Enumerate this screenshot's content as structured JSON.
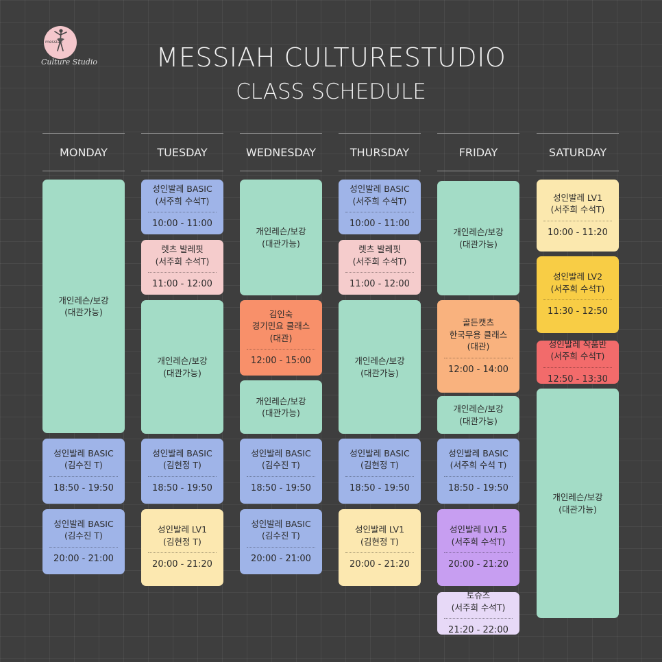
{
  "logo": {
    "mini": "messiah",
    "studio": "Culture Studio"
  },
  "header": {
    "title": "MESSIAH CULTURESTUDIO",
    "subtitle": "CLASS SCHEDULE"
  },
  "colors": {
    "background": "#3e3e3e",
    "green": "#a3dcc6",
    "blue": "#9fb4e8",
    "pink": "#f5cccc",
    "yellow": "#fce8b0",
    "orange": "#f8906a",
    "peach": "#f9b27e",
    "purple": "#c79ef1",
    "lavender": "#e7d9f7",
    "gold": "#f8cd45",
    "red": "#f26b6b"
  },
  "days": [
    {
      "label": "MONDAY",
      "classes": [
        {
          "name": "개인레슨/보강\n(대관가능)",
          "time": "",
          "color": "green"
        },
        {
          "name": "성인발레 BASIC\n(김수진 T)",
          "time": "18:50 - 19:50",
          "color": "blue"
        },
        {
          "name": "성인발레 BASIC\n(김수진 T)",
          "time": "20:00 - 21:00",
          "color": "blue"
        }
      ]
    },
    {
      "label": "TUESDAY",
      "classes": [
        {
          "name": "성인발레 BASIC\n(서주희 수석T)",
          "time": "10:00 - 11:00",
          "color": "blue"
        },
        {
          "name": "렛츠 발레핏\n(서주희 수석T)",
          "time": "11:00 - 12:00",
          "color": "pink"
        },
        {
          "name": "개인레슨/보강\n(대관가능)",
          "time": "",
          "color": "green"
        },
        {
          "name": "성인발레 BASIC\n(김현정 T)",
          "time": "18:50 - 19:50",
          "color": "blue"
        },
        {
          "name": "성인발레 LV1\n(김현정 T)",
          "time": "20:00 - 21:20",
          "color": "yellow"
        }
      ]
    },
    {
      "label": "WEDNESDAY",
      "classes": [
        {
          "name": "개인레슨/보강\n(대관가능)",
          "time": "",
          "color": "green"
        },
        {
          "name": "김인숙\n경기민요 클래스\n(대관)",
          "time": "12:00 - 15:00",
          "color": "orange"
        },
        {
          "name": "개인레슨/보강\n(대관가능)",
          "time": "",
          "color": "green"
        },
        {
          "name": "성인발레 BASIC\n(김수진 T)",
          "time": "18:50 - 19:50",
          "color": "blue"
        },
        {
          "name": "성인발레 BASIC\n(김수진 T)",
          "time": "20:00 - 21:00",
          "color": "blue"
        }
      ]
    },
    {
      "label": "THURSDAY",
      "classes": [
        {
          "name": "성인발레 BASIC\n(서주희 수석T)",
          "time": "10:00 - 11:00",
          "color": "blue"
        },
        {
          "name": "렛츠 발레핏\n(서주희 수석T)",
          "time": "11:00 - 12:00",
          "color": "pink"
        },
        {
          "name": "개인레슨/보강\n(대관가능)",
          "time": "",
          "color": "green"
        },
        {
          "name": "성인발레 BASIC\n(김현정 T)",
          "time": "18:50 - 19:50",
          "color": "blue"
        },
        {
          "name": "성인발레 LV1\n(김현정 T)",
          "time": "20:00 - 21:20",
          "color": "yellow"
        }
      ]
    },
    {
      "label": "FRIDAY",
      "classes": [
        {
          "name": "개인레슨/보강\n(대관가능)",
          "time": "",
          "color": "green"
        },
        {
          "name": "골든캣츠\n한국무용 클래스\n(대관)",
          "time": "12:00 - 14:00",
          "color": "peach"
        },
        {
          "name": "개인레슨/보강\n(대관가능)",
          "time": "",
          "color": "green"
        },
        {
          "name": "성인발레 BASIC\n(서주희 수석 T)",
          "time": "18:50 - 19:50",
          "color": "blue"
        },
        {
          "name": "성인발레 LV1.5\n(서주희 수석T)",
          "time": "20:00 - 21:20",
          "color": "purple"
        },
        {
          "name": "토슈즈\n(서주희 수석T)",
          "time": "21:20 - 22:00",
          "color": "lavender"
        }
      ]
    },
    {
      "label": "SATURDAY",
      "classes": [
        {
          "name": "성인발레 LV1\n(서주희 수석T)",
          "time": "10:00 - 11:20",
          "color": "cream"
        },
        {
          "name": "성인발레 LV2\n(서주희 수석T)",
          "time": "11:30 - 12:50",
          "color": "gold"
        },
        {
          "name": "성인발레 작품반\n(서주희 수석T)",
          "time": "12:50 - 13:30",
          "color": "red"
        },
        {
          "name": "개인레슨/보강\n(대관가능)",
          "time": "",
          "color": "green"
        }
      ]
    }
  ]
}
